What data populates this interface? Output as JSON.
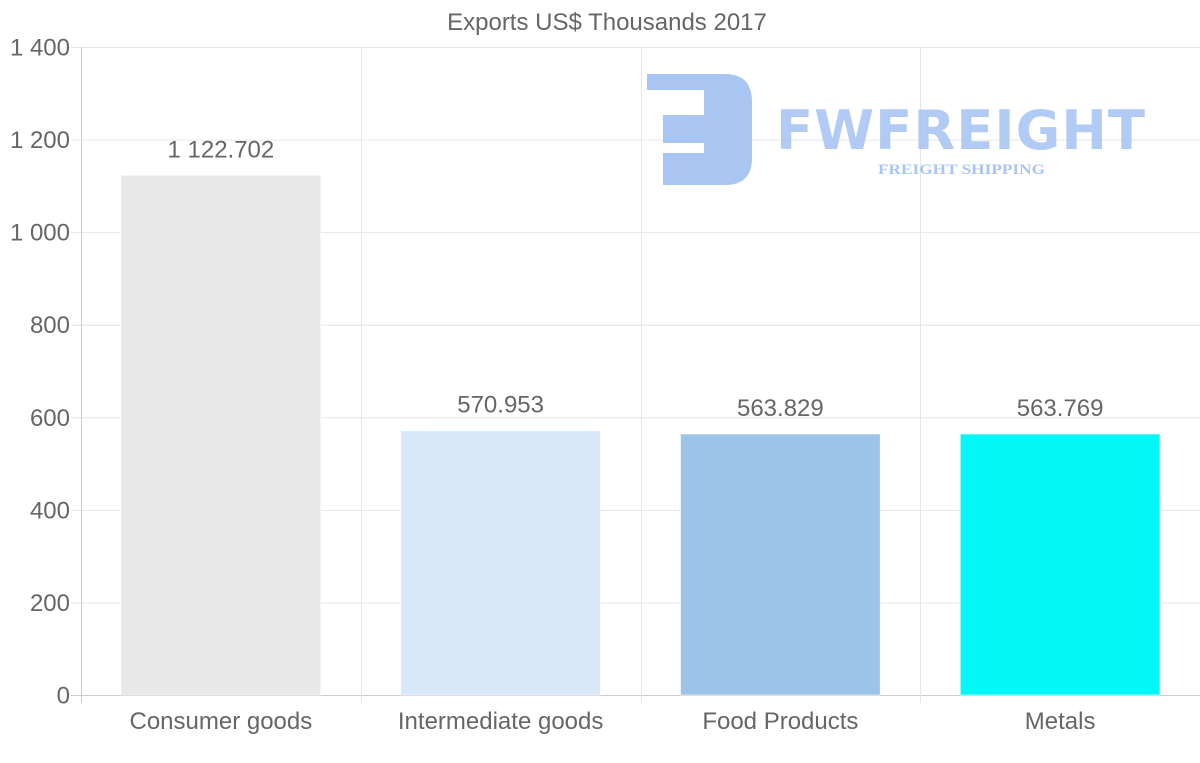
{
  "chart_data": {
    "type": "bar",
    "title": "Exports US$ Thousands 2017",
    "xlabel": "",
    "ylabel": "",
    "categories": [
      "Consumer goods",
      "Intermediate goods",
      "Food Products",
      "Metals"
    ],
    "values": [
      1122.702,
      570.953,
      563.829,
      563.769
    ],
    "value_labels": [
      "1 122.702",
      "570.953",
      "563.829",
      "563.769"
    ],
    "colors": [
      "#e8e8e8",
      "#d8e8f9",
      "#9cc4e7",
      "#03f7f7"
    ],
    "ylim": [
      0,
      1400
    ],
    "yticks": [
      0,
      200,
      400,
      600,
      800,
      1000,
      1200,
      1400
    ],
    "ytick_labels": [
      "0",
      "200",
      "400",
      "600",
      "800",
      "1 000",
      "1 200",
      "1 400"
    ],
    "grid": true,
    "legend": "none"
  },
  "watermark": {
    "name": "FWFREIGHT",
    "tagline": "FREIGHT SHIPPING"
  }
}
